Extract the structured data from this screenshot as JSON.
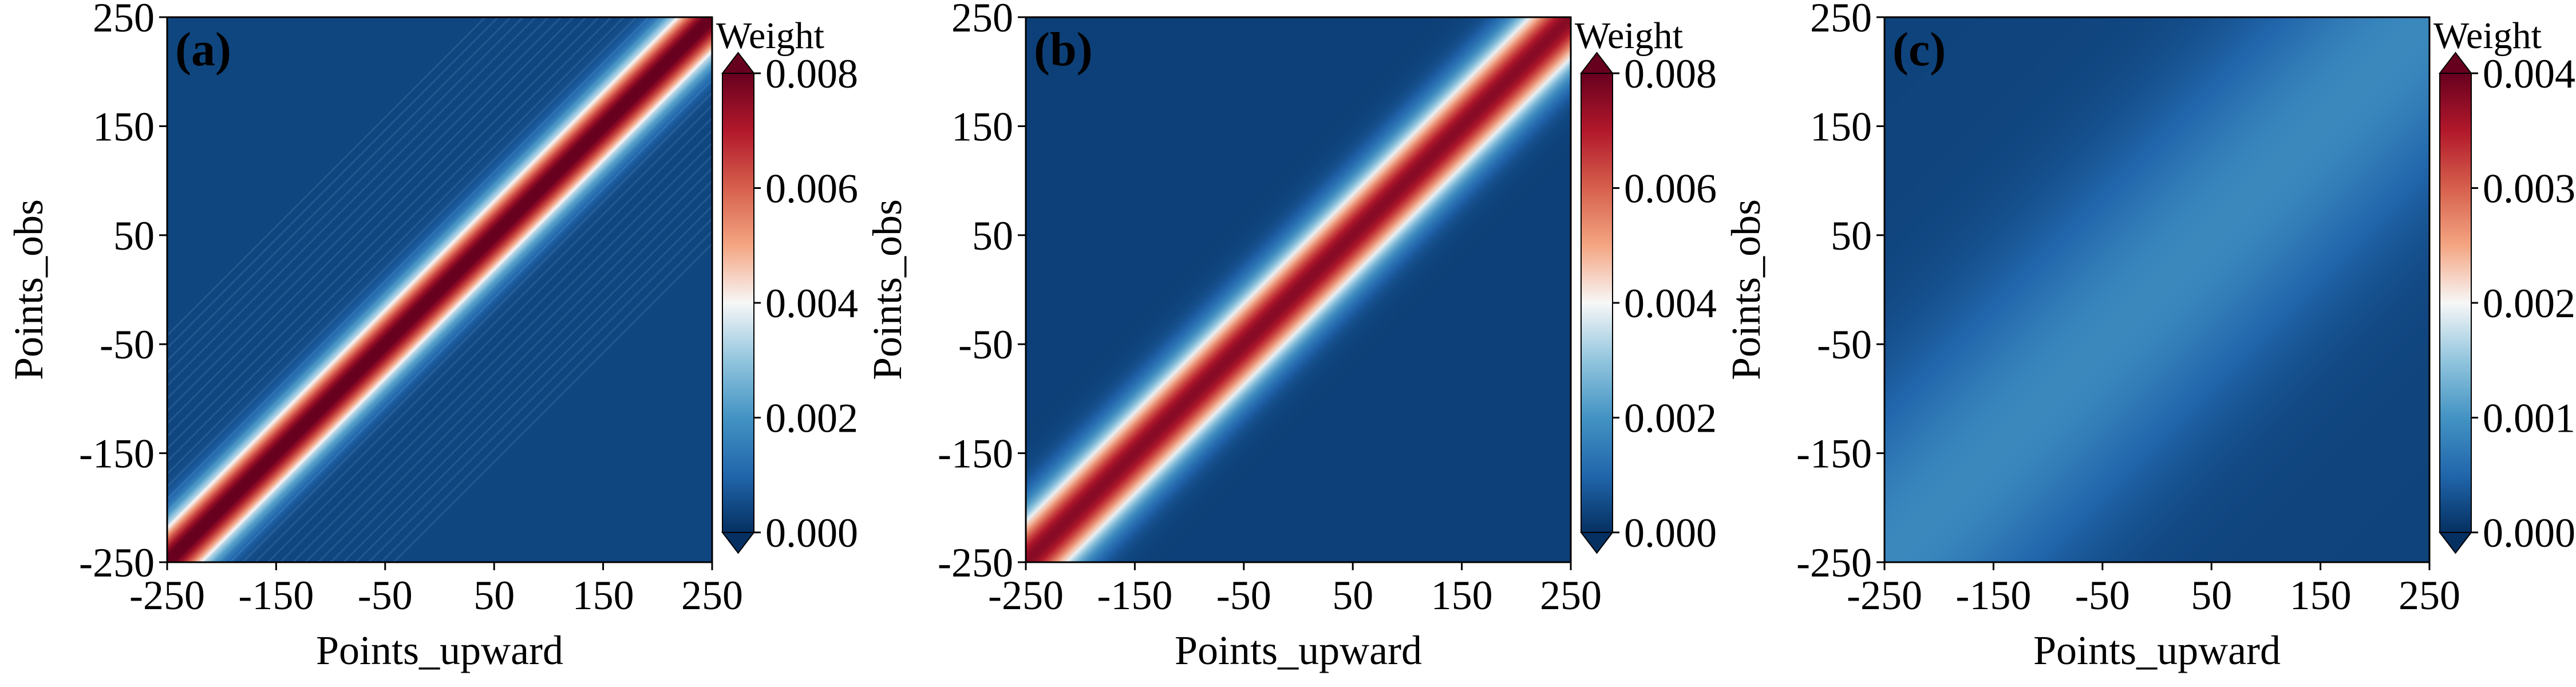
{
  "chart_data": [
    {
      "type": "heatmap",
      "panel_label": "(a)",
      "xlabel": "Points_upward",
      "ylabel": "Points_obs",
      "xlim": [
        -250,
        250
      ],
      "ylim": [
        -250,
        250
      ],
      "xticks": [
        "-250",
        "-150",
        "-50",
        "50",
        "150",
        "250"
      ],
      "yticks": [
        "-250",
        "-150",
        "-50",
        "50",
        "150",
        "250"
      ],
      "colorbar": {
        "title": "Weight",
        "range": [
          0,
          0.008
        ],
        "ticks": [
          "0.000",
          "0.002",
          "0.004",
          "0.006",
          "0.008"
        ],
        "colormap": "RdBu_r",
        "extend": "both"
      },
      "pattern": {
        "kind": "diagonal_band",
        "peak_weight": 0.0082,
        "background_weight": 0.0004,
        "band_width_points": 42,
        "near_diagonal_stripes": true
      }
    },
    {
      "type": "heatmap",
      "panel_label": "(b)",
      "xlabel": "Points_upward",
      "ylabel": "Points_obs",
      "xlim": [
        -250,
        250
      ],
      "ylim": [
        -250,
        250
      ],
      "xticks": [
        "-250",
        "-150",
        "-50",
        "50",
        "150",
        "250"
      ],
      "yticks": [
        "-250",
        "-150",
        "-50",
        "50",
        "150",
        "250"
      ],
      "colorbar": {
        "title": "Weight",
        "range": [
          0,
          0.008
        ],
        "ticks": [
          "0.000",
          "0.002",
          "0.004",
          "0.006",
          "0.008"
        ],
        "colormap": "RdBu_r",
        "extend": "both"
      },
      "pattern": {
        "kind": "diagonal_band",
        "peak_weight": 0.0076,
        "background_weight": 0.0003,
        "band_width_points": 52,
        "near_diagonal_stripes": false
      }
    },
    {
      "type": "heatmap",
      "panel_label": "(c)",
      "xlabel": "Points_upward",
      "ylabel": "Points_obs",
      "xlim": [
        -250,
        250
      ],
      "ylim": [
        -250,
        250
      ],
      "xticks": [
        "-250",
        "-150",
        "-50",
        "50",
        "150",
        "250"
      ],
      "yticks": [
        "-250",
        "-150",
        "-50",
        "50",
        "150",
        "250"
      ],
      "colorbar": {
        "title": "Weight",
        "range": [
          0,
          0.004
        ],
        "ticks": [
          "0.000",
          "0.001",
          "0.002",
          "0.003",
          "0.004"
        ],
        "colormap": "RdBu_r",
        "extend": "both"
      },
      "pattern": {
        "kind": "diagonal_band",
        "peak_weight": 0.00088,
        "background_weight": 0.00018,
        "band_width_points": 180,
        "near_diagonal_stripes": false
      }
    }
  ]
}
